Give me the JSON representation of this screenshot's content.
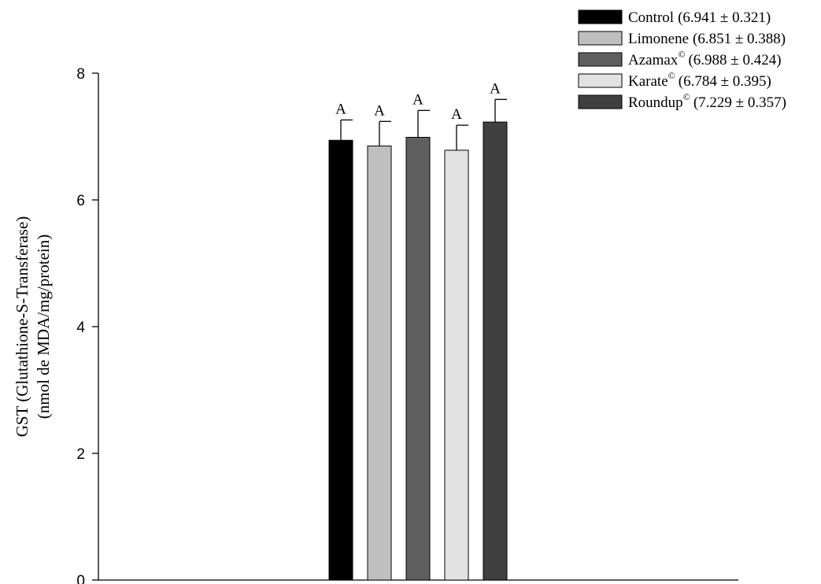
{
  "chart_data": {
    "type": "bar",
    "ylabel_lines": [
      "GST (Glutathione-S-Transferase)",
      "(nmol de MDA/mg/protein)"
    ],
    "ylim": [
      0,
      8
    ],
    "yticks": [
      0,
      2,
      4,
      6,
      8
    ],
    "grid": false,
    "legend_position": "top-right",
    "series": [
      {
        "name": "Control",
        "sup": "",
        "stats": "(6.941 ± 0.321)",
        "value": 6.941,
        "error": 0.321,
        "color": "#000000",
        "significance": "A"
      },
      {
        "name": "Limonene",
        "sup": "",
        "stats": "(6.851 ± 0.388)",
        "value": 6.851,
        "error": 0.388,
        "color": "#bfbfbf",
        "significance": "A"
      },
      {
        "name": "Azamax",
        "sup": "©",
        "stats": "(6.988 ± 0.424)",
        "value": 6.988,
        "error": 0.424,
        "color": "#5f5f5f",
        "significance": "A"
      },
      {
        "name": "Karate",
        "sup": "©",
        "stats": "(6.784 ± 0.395)",
        "value": 6.784,
        "error": 0.395,
        "color": "#e2e2e2",
        "significance": "A"
      },
      {
        "name": "Roundup",
        "sup": "©",
        "stats": "(7.229 ± 0.357)",
        "value": 7.229,
        "error": 0.357,
        "color": "#404040",
        "significance": "A"
      }
    ]
  }
}
